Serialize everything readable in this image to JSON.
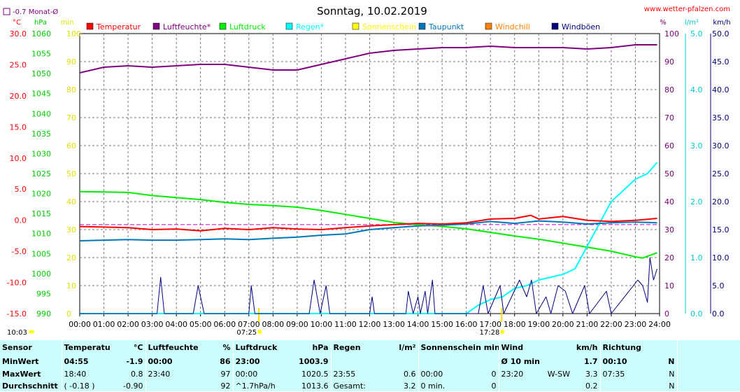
{
  "header": {
    "title": "Sonntag, 10.02.2019",
    "site": "www.wetter-pfalzen.com",
    "monat_label": "-0.7 Monat-Ø"
  },
  "colors": {
    "temperature": "#ff0000",
    "humidity": "#800080",
    "pressure": "#00ee00",
    "rain": "#00ffff",
    "sunshine": "#ffff00",
    "dewpoint": "#0077bb",
    "windchill": "#ff8000",
    "gusts": "#000080",
    "temp_axis": "#ff0000",
    "hpa_axis": "#00cc00",
    "min_axis": "#e0e000",
    "pct_axis": "#800080",
    "rain_axis": "#00cccc",
    "kmh_axis": "#000080",
    "stats_bg": "#ccfdfd"
  },
  "chart_data": {
    "type": "line",
    "title": "Sonntag, 10.02.2019",
    "x_labels": [
      "00:00",
      "01:00",
      "02:00",
      "03:00",
      "04:00",
      "05:00",
      "06:00",
      "07:00",
      "08:00",
      "09:00",
      "10:00",
      "11:00",
      "12:00",
      "13:00",
      "14:00",
      "15:00",
      "16:00",
      "17:00",
      "18:00",
      "19:00",
      "20:00",
      "21:00",
      "22:00",
      "23:00",
      "24:00"
    ],
    "axes": {
      "temp": {
        "unit": "°C",
        "ticks": [
          "30.0",
          "25.0",
          "20.0",
          "15.0",
          "10.0",
          "5.0",
          "0.0",
          "-5.0",
          "-10.0",
          "-15.0"
        ],
        "ylim": [
          -15,
          30
        ]
      },
      "hpa": {
        "unit": "hPa",
        "ticks": [
          "1060",
          "1055",
          "1050",
          "1045",
          "1040",
          "1035",
          "1030",
          "1025",
          "1020",
          "1015",
          "1010",
          "1005",
          "1000",
          "995",
          "990"
        ],
        "ylim": [
          990,
          1060
        ]
      },
      "min": {
        "unit": "min",
        "ticks": [
          "100",
          "90",
          "80",
          "70",
          "60",
          "50",
          "40",
          "30",
          "20",
          "10",
          "0"
        ],
        "ylim": [
          0,
          100
        ]
      },
      "pct": {
        "unit": "%",
        "ticks": [
          "100",
          "90",
          "80",
          "70",
          "60",
          "50",
          "40",
          "30",
          "20",
          "10",
          "0"
        ],
        "ylim": [
          0,
          100
        ]
      },
      "rain": {
        "unit": "l/m²",
        "ticks": [
          "5.0",
          "4.0",
          "3.0",
          "2.0",
          "1.0",
          "0.0"
        ],
        "ylim": [
          0,
          5
        ]
      },
      "kmh": {
        "unit": "km/h",
        "ticks": [
          "50.0",
          "45.0",
          "40.0",
          "35.0",
          "30.0",
          "25.0",
          "20.0",
          "15.0",
          "10.0",
          "5.0",
          "0.0"
        ],
        "ylim": [
          0,
          50
        ]
      }
    },
    "legend": [
      "Temperatur",
      "Luftfeuchte*",
      "Luftdruck",
      "Regen*",
      "Sonnenschein",
      "Taupunkt",
      "Windchill",
      "Windböen"
    ],
    "monthly_avg_temp": -0.7,
    "sunrise": "07:25",
    "sunset": "17:28",
    "day_start": "10:03",
    "series": [
      {
        "name": "Temperatur",
        "axis": "temp",
        "color": "#ff0000",
        "points": [
          [
            0,
            -1.0
          ],
          [
            1,
            -1.1
          ],
          [
            2,
            -1.2
          ],
          [
            3,
            -1.5
          ],
          [
            4,
            -1.4
          ],
          [
            5,
            -1.7
          ],
          [
            6,
            -1.3
          ],
          [
            7,
            -1.5
          ],
          [
            8,
            -1.2
          ],
          [
            9,
            -1.4
          ],
          [
            10,
            -1.5
          ],
          [
            11,
            -1.2
          ],
          [
            12,
            -0.9
          ],
          [
            13,
            -0.7
          ],
          [
            14,
            -0.5
          ],
          [
            15,
            -0.6
          ],
          [
            16,
            -0.4
          ],
          [
            17,
            0.2
          ],
          [
            18,
            0.3
          ],
          [
            18.67,
            0.8
          ],
          [
            19,
            0.2
          ],
          [
            20,
            0.6
          ],
          [
            21,
            0.0
          ],
          [
            22,
            -0.2
          ],
          [
            23,
            0.0
          ],
          [
            23.9,
            0.3
          ]
        ]
      },
      {
        "name": "Taupunkt",
        "axis": "temp",
        "color": "#0077bb",
        "points": [
          [
            0,
            -3.3
          ],
          [
            1,
            -3.2
          ],
          [
            2,
            -3.1
          ],
          [
            3,
            -3.2
          ],
          [
            4,
            -3.2
          ],
          [
            5,
            -3.1
          ],
          [
            6,
            -3.0
          ],
          [
            7,
            -3.1
          ],
          [
            8,
            -2.9
          ],
          [
            9,
            -2.7
          ],
          [
            10,
            -2.4
          ],
          [
            11,
            -2.2
          ],
          [
            12,
            -1.5
          ],
          [
            13,
            -1.2
          ],
          [
            14,
            -0.9
          ],
          [
            15,
            -0.8
          ],
          [
            16,
            -0.6
          ],
          [
            17,
            -0.2
          ],
          [
            18,
            -0.5
          ],
          [
            19,
            -0.1
          ],
          [
            20,
            -0.3
          ],
          [
            21,
            -0.6
          ],
          [
            22,
            -0.4
          ],
          [
            23,
            -0.3
          ],
          [
            23.9,
            -0.4
          ]
        ]
      },
      {
        "name": "Luftfeuchte*",
        "axis": "pct",
        "color": "#800080",
        "points": [
          [
            0,
            86
          ],
          [
            1,
            88
          ],
          [
            2,
            88.5
          ],
          [
            3,
            88
          ],
          [
            4,
            88.5
          ],
          [
            5,
            89
          ],
          [
            6,
            89
          ],
          [
            7,
            88
          ],
          [
            8,
            87
          ],
          [
            9,
            87
          ],
          [
            10,
            89
          ],
          [
            11,
            91
          ],
          [
            12,
            93
          ],
          [
            13,
            94
          ],
          [
            14,
            94.5
          ],
          [
            15,
            95
          ],
          [
            16,
            95
          ],
          [
            17,
            95.5
          ],
          [
            18,
            95
          ],
          [
            19,
            95
          ],
          [
            20,
            95
          ],
          [
            21,
            94.5
          ],
          [
            22,
            95
          ],
          [
            23,
            96
          ],
          [
            23.9,
            96
          ]
        ]
      },
      {
        "name": "Luftdruck",
        "axis": "hpa",
        "color": "#00ee00",
        "points": [
          [
            0,
            1020.5
          ],
          [
            1,
            1020.4
          ],
          [
            2,
            1020.3
          ],
          [
            3,
            1019.5
          ],
          [
            4,
            1019
          ],
          [
            5,
            1018.5
          ],
          [
            6,
            1017.8
          ],
          [
            7,
            1017.3
          ],
          [
            8,
            1017
          ],
          [
            9,
            1016.6
          ],
          [
            10,
            1015.8
          ],
          [
            11,
            1014.8
          ],
          [
            12,
            1013.8
          ],
          [
            13,
            1012.8
          ],
          [
            14,
            1012.2
          ],
          [
            15,
            1011.8
          ],
          [
            16,
            1011.2
          ],
          [
            17,
            1010.3
          ],
          [
            18,
            1009.4
          ],
          [
            19,
            1008.6
          ],
          [
            20,
            1007.6
          ],
          [
            21,
            1006.6
          ],
          [
            22,
            1005.6
          ],
          [
            23,
            1004.2
          ],
          [
            23.3,
            1003.9
          ],
          [
            23.9,
            1005.2
          ]
        ]
      },
      {
        "name": "Regen*",
        "axis": "rain",
        "color": "#00ffff",
        "points": [
          [
            0,
            0
          ],
          [
            16,
            0
          ],
          [
            16.5,
            0.15
          ],
          [
            17,
            0.25
          ],
          [
            17.5,
            0.3
          ],
          [
            18,
            0.45
          ],
          [
            18.5,
            0.5
          ],
          [
            19,
            0.6
          ],
          [
            20,
            0.7
          ],
          [
            20.5,
            0.8
          ],
          [
            21,
            1.2
          ],
          [
            21.5,
            1.6
          ],
          [
            22,
            2.0
          ],
          [
            22.5,
            2.2
          ],
          [
            23,
            2.4
          ],
          [
            23.5,
            2.5
          ],
          [
            23.9,
            2.7
          ]
        ]
      },
      {
        "name": "Windböen",
        "axis": "kmh",
        "color": "#000080",
        "points": [
          [
            0,
            0
          ],
          [
            3.2,
            0
          ],
          [
            3.35,
            6.5
          ],
          [
            3.5,
            0
          ],
          [
            4.7,
            0
          ],
          [
            4.9,
            5
          ],
          [
            5.15,
            0
          ],
          [
            7.0,
            0
          ],
          [
            7.1,
            5
          ],
          [
            7.25,
            0
          ],
          [
            9.5,
            0
          ],
          [
            9.7,
            6
          ],
          [
            9.95,
            0
          ],
          [
            10.2,
            5
          ],
          [
            10.35,
            0
          ],
          [
            12.0,
            0
          ],
          [
            12.1,
            3
          ],
          [
            12.2,
            0
          ],
          [
            13.5,
            0
          ],
          [
            13.6,
            4
          ],
          [
            13.8,
            0
          ],
          [
            14.0,
            3
          ],
          [
            14.1,
            0
          ],
          [
            14.3,
            4
          ],
          [
            14.4,
            0
          ],
          [
            14.6,
            6
          ],
          [
            14.7,
            0
          ],
          [
            16.5,
            0
          ],
          [
            16.7,
            5
          ],
          [
            16.9,
            0
          ],
          [
            17.4,
            5
          ],
          [
            17.55,
            0
          ],
          [
            18.2,
            6
          ],
          [
            18.5,
            3
          ],
          [
            18.7,
            6
          ],
          [
            18.9,
            0
          ],
          [
            19.3,
            3
          ],
          [
            19.5,
            0
          ],
          [
            19.8,
            5
          ],
          [
            20.1,
            4
          ],
          [
            20.4,
            0
          ],
          [
            20.9,
            5
          ],
          [
            21.1,
            0
          ],
          [
            21.8,
            4
          ],
          [
            22.0,
            0
          ],
          [
            23.1,
            6
          ],
          [
            23.3,
            5
          ],
          [
            23.5,
            2
          ],
          [
            23.6,
            10
          ],
          [
            23.75,
            6
          ],
          [
            23.9,
            8
          ]
        ]
      }
    ]
  },
  "stats": {
    "headers": {
      "sensor": "Sensor",
      "temp": "Temperatur",
      "temp_unit": "°C",
      "hum": "Luftfeuchte",
      "hum_unit": "%",
      "press": "Luftdruck",
      "press_unit": "hPa",
      "rain": "Regen",
      "rain_unit": "l/m²",
      "sun": "Sonnenschein min",
      "wind": "Wind",
      "wind_unit": "km/h",
      "dir": "Richtung"
    },
    "rows": [
      {
        "label": "MinWert",
        "temp_time": "04:55",
        "temp_val": "-1.9",
        "hum_time": "00:00",
        "hum_val": "86",
        "press_time": "23:00",
        "press_val": "1003.9",
        "rain_time": "",
        "rain_val": "",
        "sun_time": "",
        "sun_val": "",
        "wind_time": "Ø 10 min.",
        "wind_dir": "",
        "wind_val": "1.7",
        "dir_time": "00:10",
        "dir_val": "N"
      },
      {
        "label": "MaxWert",
        "temp_time": "18:40",
        "temp_val": "0.8",
        "hum_time": "23:40",
        "hum_val": "97",
        "press_time": "00:00",
        "press_val": "1020.5",
        "rain_time": "23:55",
        "rain_val": "0.6",
        "sun_time": "00:00",
        "sun_val": "0",
        "wind_time": "23:20",
        "wind_dir": "W-SW",
        "wind_val": "3.3",
        "dir_time": "07:35",
        "dir_val": "N"
      },
      {
        "label": "Durchschnitt",
        "temp_time": "( -0.18 )",
        "temp_val": "-0.90",
        "hum_time": "",
        "hum_val": "92",
        "press_time": "^1.7hPa/h",
        "press_val": "1013.6",
        "rain_time": "Gesamt:",
        "rain_val": "3.2",
        "sun_time": "0 min.",
        "sun_val": "0",
        "wind_time": "",
        "wind_dir": "",
        "wind_val": "0.2",
        "dir_time": "",
        "dir_val": "N"
      }
    ]
  }
}
